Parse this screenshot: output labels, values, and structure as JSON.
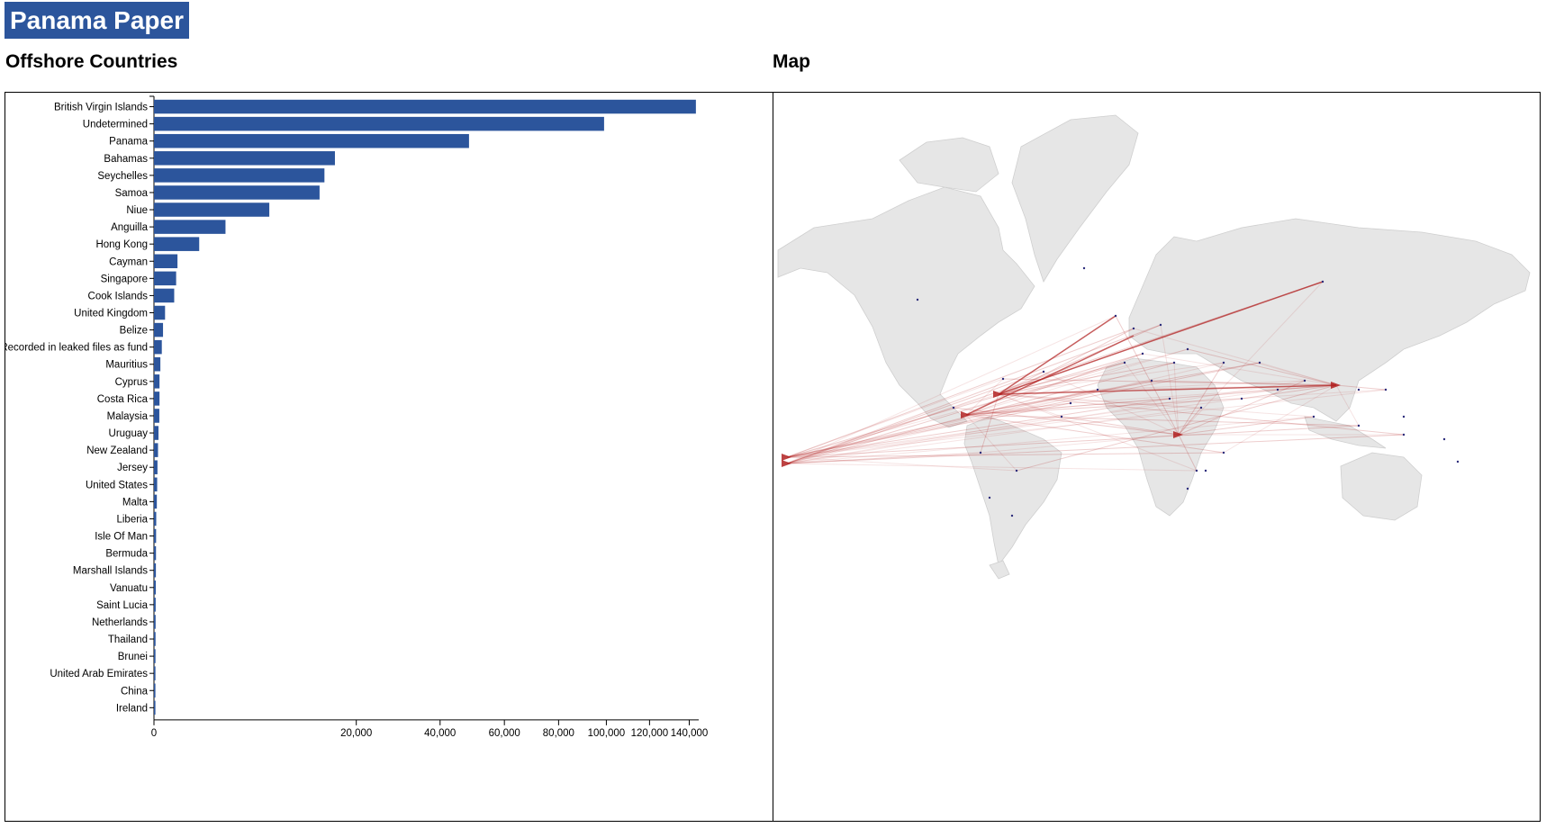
{
  "header": {
    "title": "Panama Paper"
  },
  "sections": {
    "bar_title": "Offshore Countries",
    "map_title": "Map"
  },
  "colors": {
    "bar": "#2c559c",
    "title_bg": "#2c559c",
    "land": "#e6e6e6",
    "land_stroke": "#cfcfcf",
    "flow": "#b22222",
    "node": "#2b2b7a"
  },
  "chart_data": {
    "type": "bar",
    "orientation": "horizontal",
    "categories": [
      "British Virgin Islands",
      "Undetermined",
      "Panama",
      "Bahamas",
      "Seychelles",
      "Samoa",
      "Niue",
      "Anguilla",
      "Hong Kong",
      "Cayman",
      "Singapore",
      "Cook Islands",
      "United Kingdom",
      "Belize",
      "Recorded in leaked files as fund",
      "Mauritius",
      "Cyprus",
      "Costa Rica",
      "Malaysia",
      "Uruguay",
      "New Zealand",
      "Jersey",
      "United States",
      "Malta",
      "Liberia",
      "Isle Of Man",
      "Bermuda",
      "Marshall Islands",
      "Vanuatu",
      "Saint Lucia",
      "Netherlands",
      "Thailand",
      "Brunei",
      "United Arab Emirates",
      "China",
      "Ireland"
    ],
    "values": [
      143500,
      99000,
      48500,
      16000,
      14200,
      13400,
      6500,
      2500,
      1000,
      270,
      240,
      200,
      60,
      40,
      30,
      20,
      15,
      15,
      14,
      10,
      8,
      6,
      5,
      4,
      2.5,
      2.2,
      2.0,
      1.8,
      1.6,
      1.4,
      1.3,
      1.2,
      1.1,
      1.05,
      1.0,
      1.0
    ],
    "xlabel": "",
    "ylabel": "",
    "x_scale": "sqrt",
    "xlim": [
      0,
      145000
    ],
    "xticks": [
      0,
      20000,
      40000,
      60000,
      80000,
      100000,
      120000,
      140000
    ],
    "xtick_labels": [
      "0",
      "20,000",
      "40,000",
      "60,000",
      "80,000",
      "100,000",
      "120,000",
      "140,000"
    ],
    "grid": false,
    "legend": "none"
  }
}
